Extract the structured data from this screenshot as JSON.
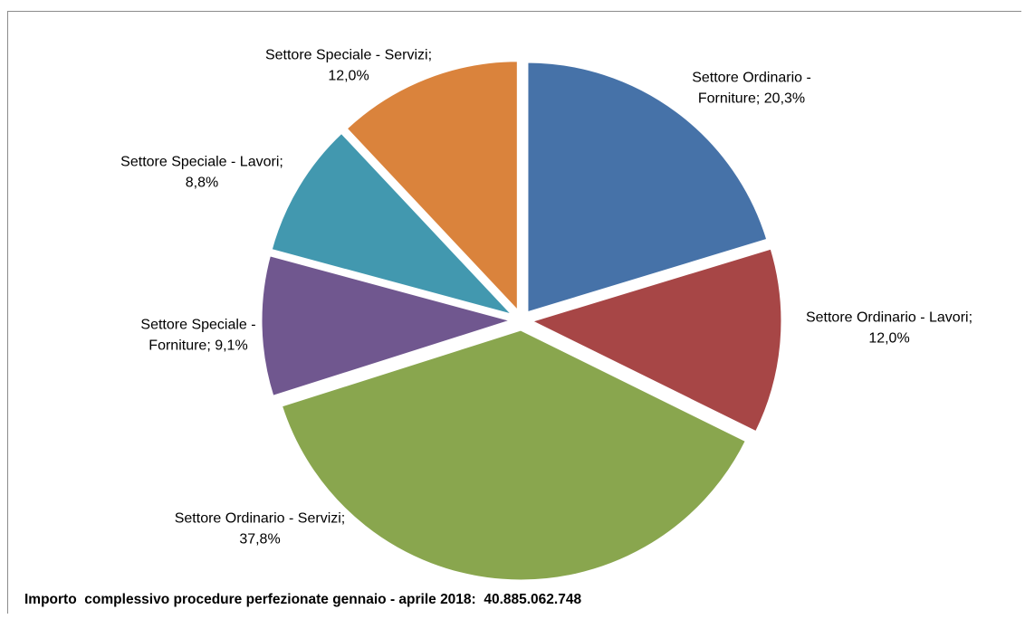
{
  "chart_data": {
    "type": "pie",
    "title": "",
    "slices": [
      {
        "label_lines": [
          "Settore Ordinario -",
          "Forniture; 20,3%"
        ],
        "value": 20.3,
        "color": "#4672A8"
      },
      {
        "label_lines": [
          "Settore Ordinario - Lavori;",
          "12,0%"
        ],
        "value": 12.0,
        "color": "#A74646"
      },
      {
        "label_lines": [
          "Settore Ordinario - Servizi;",
          "37,8%"
        ],
        "value": 37.8,
        "color": "#89A64E"
      },
      {
        "label_lines": [
          "Settore Speciale -",
          "Forniture; 9,1%"
        ],
        "value": 9.1,
        "color": "#70578F"
      },
      {
        "label_lines": [
          "Settore Speciale - Lavori;",
          "8,8%"
        ],
        "value": 8.8,
        "color": "#4298AF"
      },
      {
        "label_lines": [
          "Settore Speciale - Servizi;",
          "12,0%"
        ],
        "value": 12.0,
        "color": "#DA833C"
      }
    ],
    "legend": "none"
  },
  "footnote": "Importo  complessivo procedure perfezionate gennaio - aprile 2018:  40.885.062.748"
}
